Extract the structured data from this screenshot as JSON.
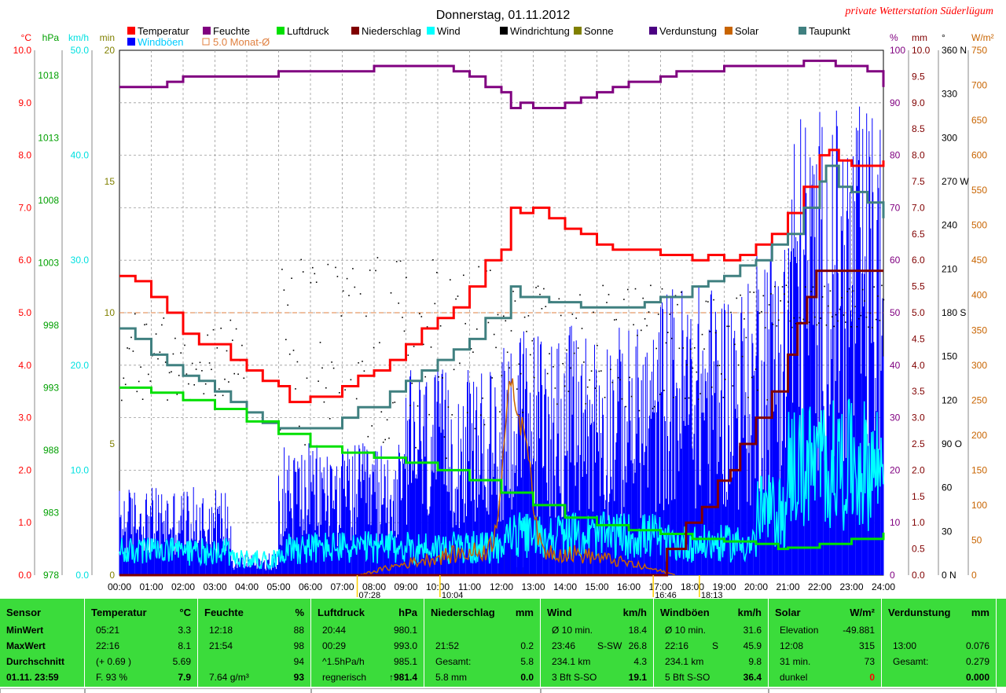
{
  "title": "Donnerstag, 01.11.2012",
  "station": "private Wetterstation Süderlügum",
  "legend": [
    {
      "label": "Temperatur",
      "color": "#ff0000"
    },
    {
      "label": "Feuchte",
      "color": "#800080"
    },
    {
      "label": "Luftdruck",
      "color": "#00e000"
    },
    {
      "label": "Niederschlag",
      "color": "#800000"
    },
    {
      "label": "Wind",
      "color": "#00ffff"
    },
    {
      "label": "Windrichtung",
      "color": "#000000"
    },
    {
      "label": "Sonne",
      "color": "#808000"
    },
    {
      "label": "Verdunstung",
      "color": "#4b0082"
    },
    {
      "label": "Solar",
      "color": "#c86400"
    },
    {
      "label": "Taupunkt",
      "color": "#408080"
    },
    {
      "label": "Windböen",
      "color": "#0000ff"
    },
    {
      "label": "5.0 Monat-Ø",
      "color": "#e08040"
    }
  ],
  "axes": {
    "celsius": {
      "unit": "°C",
      "ticks": [
        "10.0",
        "9.0",
        "8.0",
        "7.0",
        "6.0",
        "5.0",
        "4.0",
        "3.0",
        "2.0",
        "1.0",
        "0.0"
      ],
      "color": "#ff0000"
    },
    "hpa": {
      "unit": "hPa",
      "ticks": [
        "1018",
        "1013",
        "1008",
        "1003",
        "998",
        "993",
        "988",
        "983",
        "978"
      ],
      "color": "#00a000"
    },
    "kmh": {
      "unit": "km/h",
      "ticks": [
        "50.0",
        "40.0",
        "30.0",
        "20.0",
        "10.0",
        "0.0"
      ],
      "color": "#00e0e0"
    },
    "min": {
      "unit": "min",
      "ticks": [
        "20",
        "15",
        "10",
        "5",
        "0"
      ],
      "color": "#808000"
    },
    "percent": {
      "unit": "%",
      "ticks": [
        "100",
        "90",
        "80",
        "70",
        "60",
        "50",
        "40",
        "30",
        "20",
        "10",
        "0"
      ],
      "color": "#800080"
    },
    "mm": {
      "unit": "mm",
      "ticks": [
        "10.0",
        "9.5",
        "9.0",
        "8.5",
        "8.0",
        "7.5",
        "7.0",
        "6.5",
        "6.0",
        "5.5",
        "5.0",
        "4.5",
        "4.0",
        "3.5",
        "3.0",
        "2.5",
        "2.0",
        "1.5",
        "1.0",
        "0.5",
        "0.0"
      ],
      "color": "#800000"
    },
    "degree": {
      "unit": "°",
      "ticks": [
        "360 N",
        "330",
        "300",
        "270 W",
        "240",
        "210",
        "180 S",
        "150",
        "120",
        "90 O",
        "60",
        "30",
        "0 N"
      ],
      "color": "#000000"
    },
    "wm2": {
      "unit": "W/m²",
      "ticks": [
        "750",
        "700",
        "650",
        "600",
        "550",
        "500",
        "450",
        "400",
        "350",
        "300",
        "250",
        "200",
        "150",
        "100",
        "50",
        "0"
      ],
      "color": "#c86400"
    }
  },
  "time_ticks": [
    "00:00",
    "01:00",
    "02:00",
    "03:00",
    "04:00",
    "05:00",
    "06:00",
    "07:00",
    "08:00",
    "09:00",
    "10:00",
    "11:00",
    "12:00",
    "13:00",
    "14:00",
    "15:00",
    "16:00",
    "17:00",
    "18:00",
    "19:00",
    "20:00",
    "21:00",
    "22:00",
    "23:00",
    "24:00"
  ],
  "time_markers": [
    {
      "label": "07:28",
      "t": 7.47
    },
    {
      "label": "10:04",
      "t": 10.07
    },
    {
      "label": "16:46",
      "t": 16.77
    },
    {
      "label": "18:13",
      "t": 18.22
    }
  ],
  "chart_data": {
    "type": "line",
    "x_unit": "hour of day",
    "xlim": [
      0,
      24
    ],
    "series": [
      {
        "name": "Temperatur",
        "axis": "°C",
        "color": "#ff0000",
        "points": [
          [
            0,
            5.7
          ],
          [
            0.5,
            5.6
          ],
          [
            1,
            5.3
          ],
          [
            1.5,
            5.0
          ],
          [
            2,
            4.6
          ],
          [
            2.5,
            4.4
          ],
          [
            3,
            4.4
          ],
          [
            3.5,
            4.1
          ],
          [
            4,
            3.9
          ],
          [
            4.5,
            3.7
          ],
          [
            5,
            3.6
          ],
          [
            5.35,
            3.3
          ],
          [
            6,
            3.4
          ],
          [
            6.7,
            3.4
          ],
          [
            7,
            3.6
          ],
          [
            7.5,
            3.8
          ],
          [
            8,
            3.9
          ],
          [
            8.5,
            4.1
          ],
          [
            9,
            4.4
          ],
          [
            9.5,
            4.7
          ],
          [
            10,
            4.9
          ],
          [
            10.5,
            5.1
          ],
          [
            11,
            5.5
          ],
          [
            11.5,
            6.0
          ],
          [
            12,
            6.2
          ],
          [
            12.3,
            7.0
          ],
          [
            12.6,
            6.9
          ],
          [
            13,
            7.0
          ],
          [
            13.5,
            6.8
          ],
          [
            14,
            6.6
          ],
          [
            14.5,
            6.5
          ],
          [
            15,
            6.3
          ],
          [
            15.5,
            6.2
          ],
          [
            16,
            6.2
          ],
          [
            16.5,
            6.2
          ],
          [
            17,
            6.1
          ],
          [
            17.5,
            6.1
          ],
          [
            18,
            6.0
          ],
          [
            18.5,
            6.1
          ],
          [
            19,
            6.0
          ],
          [
            19.5,
            6.1
          ],
          [
            20,
            6.3
          ],
          [
            20.5,
            6.5
          ],
          [
            21,
            6.9
          ],
          [
            21.5,
            7.4
          ],
          [
            22,
            8.0
          ],
          [
            22.3,
            8.1
          ],
          [
            22.6,
            7.9
          ],
          [
            23,
            7.8
          ],
          [
            23.5,
            7.8
          ],
          [
            24,
            7.9
          ]
        ]
      },
      {
        "name": "Taupunkt",
        "axis": "°C",
        "color": "#408080",
        "points": [
          [
            0,
            4.7
          ],
          [
            0.5,
            4.5
          ],
          [
            1,
            4.2
          ],
          [
            1.5,
            4.0
          ],
          [
            2,
            3.8
          ],
          [
            2.5,
            3.7
          ],
          [
            3,
            3.5
          ],
          [
            3.5,
            3.3
          ],
          [
            4,
            3.1
          ],
          [
            4.5,
            2.9
          ],
          [
            5,
            2.8
          ],
          [
            5.3,
            2.8
          ],
          [
            6,
            2.8
          ],
          [
            6.7,
            2.8
          ],
          [
            7,
            3.0
          ],
          [
            7.5,
            3.2
          ],
          [
            8,
            3.2
          ],
          [
            8.5,
            3.5
          ],
          [
            9,
            3.7
          ],
          [
            9.5,
            3.9
          ],
          [
            10,
            4.1
          ],
          [
            10.5,
            4.3
          ],
          [
            11,
            4.5
          ],
          [
            11.5,
            4.9
          ],
          [
            12,
            4.9
          ],
          [
            12.3,
            5.5
          ],
          [
            12.6,
            5.3
          ],
          [
            13,
            5.3
          ],
          [
            13.5,
            5.2
          ],
          [
            14,
            5.2
          ],
          [
            14.5,
            5.1
          ],
          [
            15,
            5.1
          ],
          [
            15.5,
            5.1
          ],
          [
            16,
            5.1
          ],
          [
            16.5,
            5.2
          ],
          [
            17,
            5.3
          ],
          [
            17.5,
            5.3
          ],
          [
            18,
            5.5
          ],
          [
            18.5,
            5.6
          ],
          [
            19,
            5.7
          ],
          [
            19.5,
            5.9
          ],
          [
            20,
            6.0
          ],
          [
            20.5,
            6.3
          ],
          [
            21,
            6.5
          ],
          [
            21.5,
            7.0
          ],
          [
            22,
            7.5
          ],
          [
            22.2,
            7.8
          ],
          [
            22.6,
            7.4
          ],
          [
            23,
            7.3
          ],
          [
            23.5,
            7.1
          ],
          [
            24,
            6.8
          ]
        ]
      },
      {
        "name": "Feuchte",
        "axis": "%",
        "color": "#800080",
        "points": [
          [
            0,
            93
          ],
          [
            1,
            93
          ],
          [
            1.5,
            94
          ],
          [
            2,
            95
          ],
          [
            3,
            95
          ],
          [
            4,
            95
          ],
          [
            5,
            96
          ],
          [
            6,
            96
          ],
          [
            7,
            96
          ],
          [
            8,
            97
          ],
          [
            9,
            97
          ],
          [
            10,
            97
          ],
          [
            10.5,
            96
          ],
          [
            11,
            95
          ],
          [
            11.5,
            93
          ],
          [
            12,
            92
          ],
          [
            12.3,
            89
          ],
          [
            12.6,
            90
          ],
          [
            13,
            89
          ],
          [
            13.5,
            89
          ],
          [
            14,
            90
          ],
          [
            14.5,
            91
          ],
          [
            15,
            92
          ],
          [
            15.5,
            93
          ],
          [
            16,
            94
          ],
          [
            16.5,
            94
          ],
          [
            17,
            95
          ],
          [
            17.5,
            96
          ],
          [
            18,
            96
          ],
          [
            19,
            97
          ],
          [
            20,
            97
          ],
          [
            21,
            97
          ],
          [
            21.5,
            98
          ],
          [
            22,
            98
          ],
          [
            22.5,
            97
          ],
          [
            23,
            97
          ],
          [
            23.5,
            96
          ],
          [
            24,
            93
          ]
        ]
      },
      {
        "name": "Luftdruck",
        "axis": "hPa",
        "color": "#00e000",
        "points": [
          [
            0,
            993.0
          ],
          [
            1,
            992.6
          ],
          [
            2,
            992.0
          ],
          [
            3,
            991.3
          ],
          [
            4,
            990.3
          ],
          [
            5,
            989.3
          ],
          [
            6,
            988.3
          ],
          [
            7,
            987.8
          ],
          [
            8,
            987.4
          ],
          [
            9,
            987.0
          ],
          [
            10,
            986.4
          ],
          [
            11,
            985.6
          ],
          [
            12,
            984.6
          ],
          [
            13,
            983.6
          ],
          [
            14,
            982.6
          ],
          [
            15,
            982.0
          ],
          [
            16,
            981.6
          ],
          [
            17,
            981.3
          ],
          [
            18,
            980.9
          ],
          [
            19,
            980.7
          ],
          [
            20,
            980.5
          ],
          [
            20.7,
            980.1
          ],
          [
            21,
            980.2
          ],
          [
            22,
            980.5
          ],
          [
            23,
            980.9
          ],
          [
            24,
            981.4
          ]
        ]
      },
      {
        "name": "Niederschlag",
        "axis": "mm",
        "color": "#800000",
        "points": [
          [
            0,
            0
          ],
          [
            16.8,
            0
          ],
          [
            17.2,
            0.5
          ],
          [
            17.8,
            1.0
          ],
          [
            18.3,
            1.3
          ],
          [
            18.8,
            1.8
          ],
          [
            19.2,
            2.0
          ],
          [
            19.5,
            2.5
          ],
          [
            20,
            3.0
          ],
          [
            20.5,
            3.5
          ],
          [
            21,
            4.2
          ],
          [
            21.3,
            4.8
          ],
          [
            21.6,
            5.3
          ],
          [
            21.9,
            5.8
          ],
          [
            22.2,
            5.8
          ],
          [
            24,
            5.8
          ]
        ]
      },
      {
        "name": "Sonne",
        "axis": "min",
        "color": "#808000",
        "bars": [
          [
            12.2,
            1.0
          ],
          [
            12.5,
            0.3
          ]
        ]
      }
    ],
    "monthly_avg": {
      "label": "5.0 Monat-Ø",
      "value": 5.0,
      "axis": "°C"
    }
  },
  "panel": {
    "sensor": {
      "header": "Sensor",
      "rows": [
        "MinWert",
        "MaxWert",
        "Durchschnitt",
        "01.11. 23:59"
      ]
    },
    "temperatur": {
      "header": "Temperatur",
      "unit": "°C",
      "rows": [
        [
          "05:21",
          "3.3"
        ],
        [
          "22:16",
          "8.1"
        ],
        [
          "(+ 0.69 )",
          "5.69"
        ],
        [
          "F. 93 %",
          "7.9"
        ]
      ]
    },
    "feuchte": {
      "header": "Feuchte",
      "unit": "%",
      "rows": [
        [
          "12:18",
          "88"
        ],
        [
          "21:54",
          "98"
        ],
        [
          "",
          "94"
        ],
        [
          "7.64 g/m³",
          "93"
        ]
      ]
    },
    "luftdruck": {
      "header": "Luftdruck",
      "unit": "hPa",
      "rows": [
        [
          "20:44",
          "980.1"
        ],
        [
          "00:29",
          "993.0"
        ],
        [
          "^1.5hPa/h",
          "985.1"
        ],
        [
          "regnerisch",
          "↑981.4"
        ]
      ]
    },
    "niederschlag": {
      "header": "Niederschlag",
      "unit": "mm",
      "rows": [
        [
          "",
          ""
        ],
        [
          "21:52",
          "0.2"
        ],
        [
          "Gesamt:",
          "5.8"
        ],
        [
          "5.8 mm",
          "0.0"
        ]
      ]
    },
    "wind": {
      "header": "Wind",
      "unit": "km/h",
      "rows": [
        [
          "Ø 10 min.",
          "",
          "18.4"
        ],
        [
          "23:46",
          "S-SW",
          "26.8"
        ],
        [
          "234.1 km",
          "",
          "4.3"
        ],
        [
          "3 Bft S-SO",
          "",
          "19.1"
        ]
      ]
    },
    "windboeen": {
      "header": "Windböen",
      "unit": "km/h",
      "rows": [
        [
          "Ø 10 min.",
          "",
          "31.6"
        ],
        [
          "22:16",
          "S",
          "45.9"
        ],
        [
          "234.1 km",
          "",
          "9.8"
        ],
        [
          "5 Bft S-SO",
          "",
          "36.4"
        ]
      ]
    },
    "solar": {
      "header": "Solar",
      "unit": "W/m²",
      "rows": [
        [
          "Elevation",
          "-49.881"
        ],
        [
          "12:08",
          "315"
        ],
        [
          "31 min.",
          "73"
        ],
        [
          "dunkel",
          "0"
        ]
      ]
    },
    "verdunstung": {
      "header": "Verdunstung",
      "unit": "mm",
      "rows": [
        [
          "",
          ""
        ],
        [
          "13:00",
          "0.076"
        ],
        [
          "Gesamt:",
          "0.279"
        ],
        [
          "",
          "0.000"
        ]
      ]
    }
  }
}
